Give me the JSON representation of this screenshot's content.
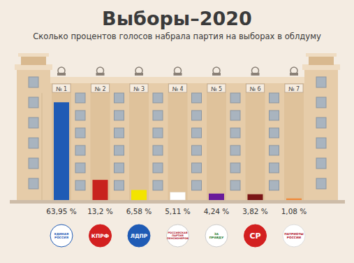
{
  "chart_data": {
    "type": "bar",
    "title": "Выборы–2020",
    "subtitle": "Сколько процентов голосов набрала партия на выборах в облдуму",
    "categories": [
      "№ 1",
      "№ 2",
      "№ 3",
      "№ 4",
      "№ 5",
      "№ 6",
      "№ 7"
    ],
    "values": [
      63.95,
      13.2,
      6.58,
      5.11,
      4.24,
      3.82,
      1.08
    ],
    "value_labels": [
      "63,95 %",
      "13,2 %",
      "6,58 %",
      "5,11 %",
      "4,24 %",
      "3,82 %",
      "1,08 %"
    ],
    "colors": [
      "#1f5bb5",
      "#c8231e",
      "#f3e400",
      "#ffffff",
      "#6a1b9a",
      "#7b1616",
      "#f08a3c"
    ],
    "logos": [
      "ЕДИНАЯ РОССИЯ",
      "КПРФ",
      "ЛДПР",
      "РОССИЙСКАЯ ПАРТИЯ ПЕНСИОНЕРОВ",
      "ЗА ПРАВДУ",
      "СР",
      "ПАТРИОТЫ РОССИИ"
    ],
    "ylim": [
      0,
      70
    ],
    "data_labels": true,
    "tick_labels": false,
    "grid": false
  }
}
